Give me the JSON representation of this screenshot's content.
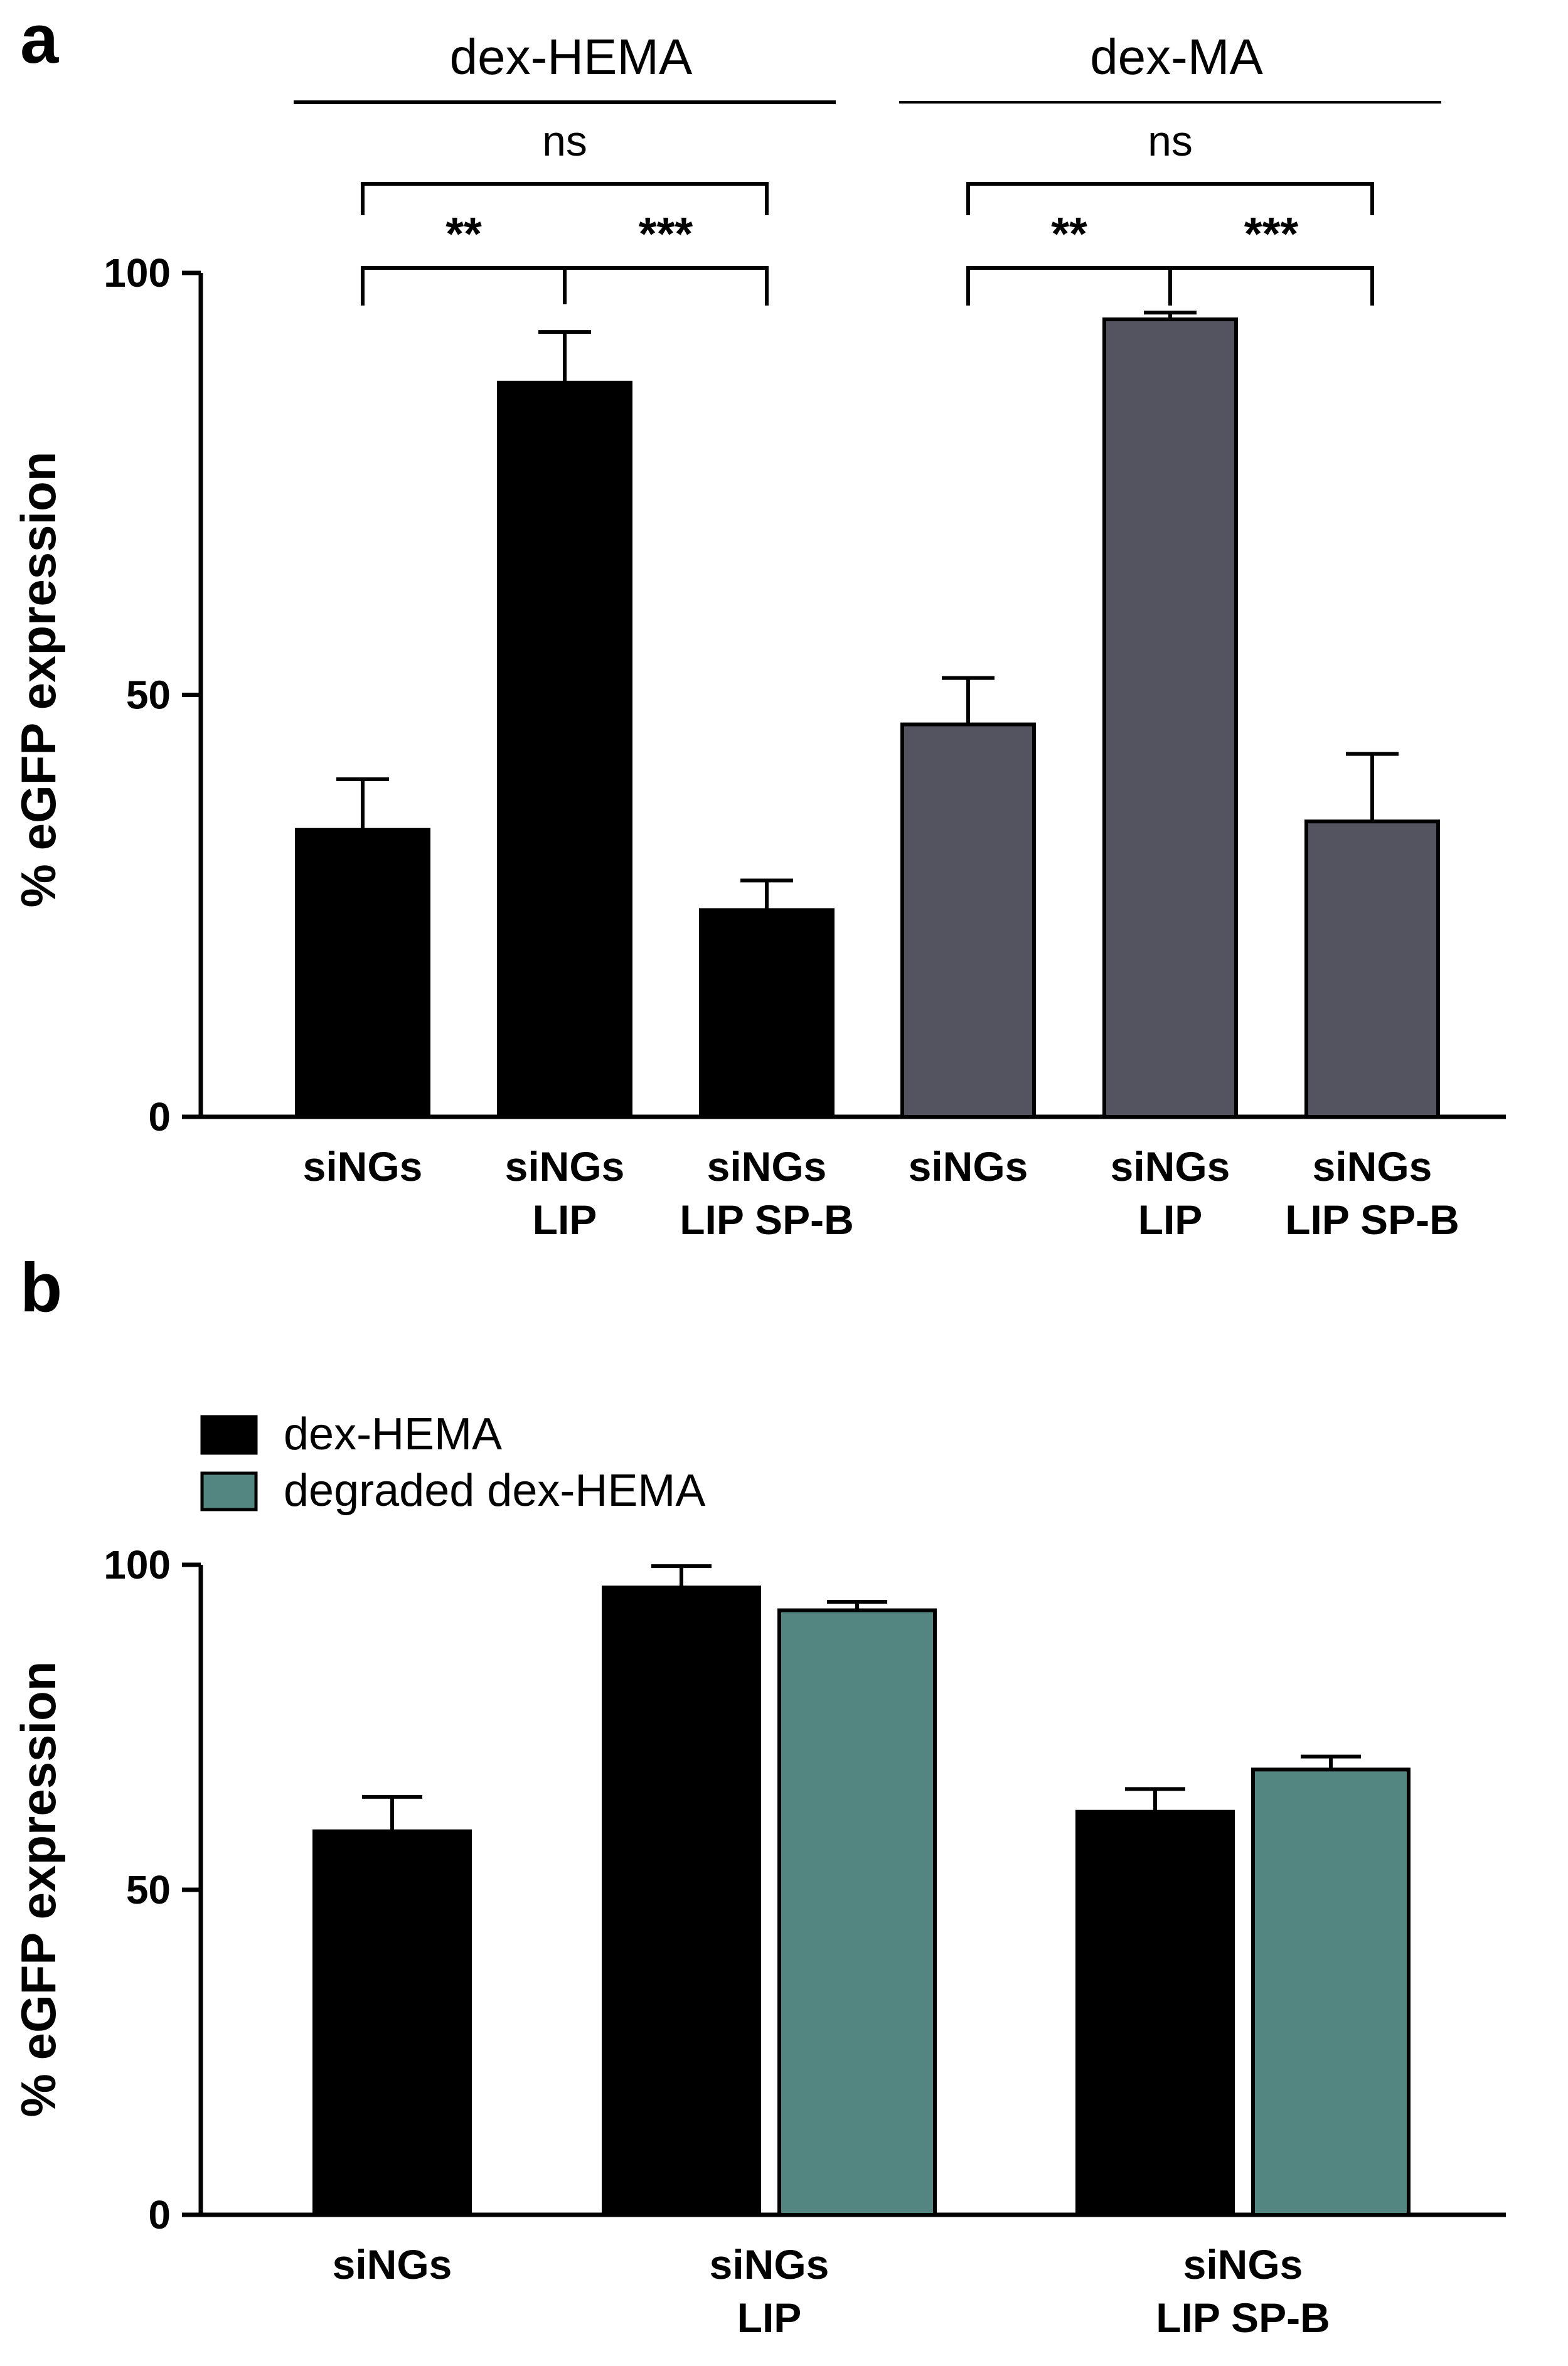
{
  "chart_data": [
    {
      "panel": "a",
      "type": "bar",
      "ylabel": "% eGFP expression",
      "ylim": [
        0,
        100
      ],
      "yticks": [
        0,
        50,
        100
      ],
      "groups": [
        {
          "label": "dex-HEMA",
          "color": "#000000",
          "categories": [
            {
              "lines": [
                "siNGs"
              ],
              "value": 34,
              "error": 6
            },
            {
              "lines": [
                "siNGs",
                "LIP"
              ],
              "value": 87,
              "error": 6
            },
            {
              "lines": [
                "siNGs",
                "LIP SP-B"
              ],
              "value": 24.5,
              "error": 3.5
            }
          ],
          "annotations": {
            "ns": "ns",
            "left": "**",
            "right": "***"
          }
        },
        {
          "label": "dex-MA",
          "color": "#545460",
          "categories": [
            {
              "lines": [
                "siNGs"
              ],
              "value": 46.5,
              "error": 5.5
            },
            {
              "lines": [
                "siNGs",
                "LIP"
              ],
              "value": 94.5,
              "error": 0.8
            },
            {
              "lines": [
                "siNGs",
                "LIP SP-B"
              ],
              "value": 35,
              "error": 8
            }
          ],
          "annotations": {
            "ns": "ns",
            "left": "**",
            "right": "***"
          }
        }
      ]
    },
    {
      "panel": "b",
      "type": "bar",
      "ylabel": "% eGFP expression",
      "ylim": [
        0,
        100
      ],
      "yticks": [
        0,
        50,
        100
      ],
      "legend": {
        "position": "top-left"
      },
      "series": [
        {
          "name": "dex-HEMA",
          "color": "#000000",
          "values": [
            59,
            96.5,
            62
          ],
          "errors": [
            5.3,
            3.3,
            3.5
          ]
        },
        {
          "name": "degraded dex-HEMA",
          "color": "#538581",
          "values": [
            null,
            93,
            68.5
          ],
          "errors": [
            null,
            1.3,
            2
          ]
        }
      ],
      "categories": [
        {
          "lines": [
            "siNGs"
          ]
        },
        {
          "lines": [
            "siNGs",
            "LIP"
          ]
        },
        {
          "lines": [
            "siNGs",
            "LIP SP-B"
          ]
        }
      ]
    }
  ]
}
